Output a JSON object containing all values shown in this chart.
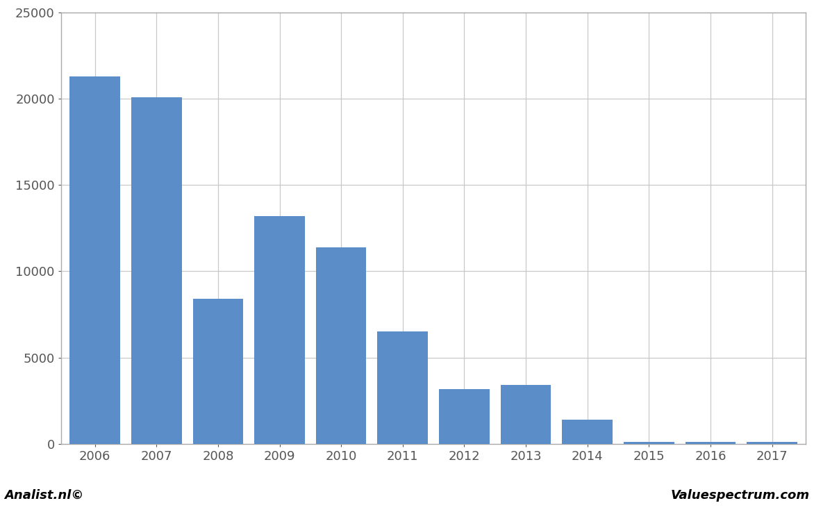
{
  "categories": [
    "2006",
    "2007",
    "2008",
    "2009",
    "2010",
    "2011",
    "2012",
    "2013",
    "2014",
    "2015",
    "2016",
    "2017"
  ],
  "values": [
    21300,
    20100,
    8400,
    13200,
    11400,
    6500,
    3150,
    3400,
    1400,
    100,
    100,
    100
  ],
  "bar_color": "#5b8dc8",
  "ylim": [
    0,
    25000
  ],
  "yticks": [
    0,
    5000,
    10000,
    15000,
    20000,
    25000
  ],
  "background_color": "#ffffff",
  "plot_bg_color": "#ffffff",
  "footer_bg_color": "#d3d3d3",
  "footer_left": "Analist.nl©",
  "footer_right": "Valuespectrum.com",
  "grid_color": "#c8c8c8",
  "spine_color": "#aaaaaa"
}
